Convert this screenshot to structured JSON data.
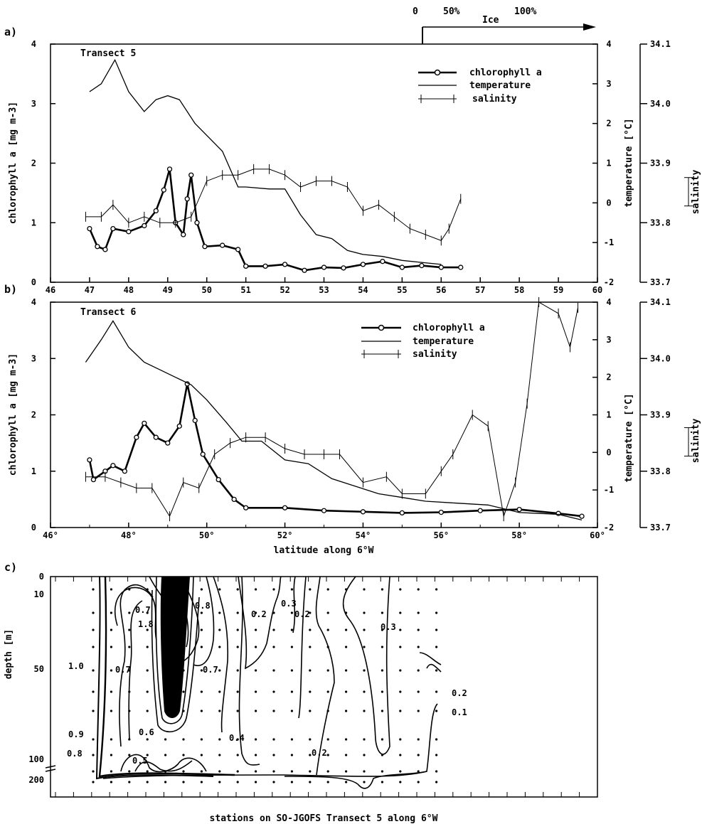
{
  "ice_bar": {
    "labels": [
      "0",
      "50%",
      "Ice",
      "100%"
    ]
  },
  "chart_data": [
    {
      "panel": "a)",
      "type": "line",
      "title": "Transect 5",
      "xlim": [
        46,
        60
      ],
      "x_ticks": [
        "46",
        "47",
        "48",
        "49",
        "50",
        "51",
        "52",
        "53",
        "54",
        "55",
        "56",
        "57",
        "58",
        "59",
        "60"
      ],
      "ylabel_left": "chlorophyll a [mg m-3]",
      "ylim_left": [
        0,
        4
      ],
      "ylabel_right": "temperature [°C]",
      "ylim_right": [
        -2,
        4
      ],
      "ylabel_salinity": "salinity",
      "ylim_salinity": [
        33.7,
        34.1
      ],
      "salinity_ticks": [
        "34.1",
        "34.0",
        "33.9",
        "33.8",
        "33.7"
      ],
      "legend": {
        "position": "top-right",
        "items": [
          "chlorophyll a",
          "temperature",
          "salinity"
        ]
      },
      "series": [
        {
          "name": "chlorophyll a",
          "axis": "left",
          "points": [
            [
              47.0,
              0.9
            ],
            [
              47.2,
              0.6
            ],
            [
              47.4,
              0.55
            ],
            [
              47.6,
              0.9
            ],
            [
              48.0,
              0.85
            ],
            [
              48.4,
              0.95
            ],
            [
              48.7,
              1.2
            ],
            [
              48.9,
              1.55
            ],
            [
              49.05,
              1.9
            ],
            [
              49.2,
              1.0
            ],
            [
              49.4,
              0.8
            ],
            [
              49.5,
              1.4
            ],
            [
              49.6,
              1.8
            ],
            [
              49.75,
              1.0
            ],
            [
              49.95,
              0.6
            ],
            [
              50.4,
              0.62
            ],
            [
              50.8,
              0.55
            ],
            [
              51.0,
              0.27
            ],
            [
              51.5,
              0.27
            ],
            [
              52.0,
              0.3
            ],
            [
              52.5,
              0.2
            ],
            [
              53.0,
              0.25
            ],
            [
              53.5,
              0.24
            ],
            [
              54.0,
              0.3
            ],
            [
              54.5,
              0.35
            ],
            [
              55.0,
              0.25
            ],
            [
              55.5,
              0.28
            ],
            [
              56.0,
              0.25
            ],
            [
              56.5,
              0.25
            ]
          ]
        },
        {
          "name": "temperature",
          "axis": "right",
          "points": [
            [
              47.0,
              2.8
            ],
            [
              47.3,
              3.0
            ],
            [
              47.65,
              3.6
            ],
            [
              48.0,
              2.8
            ],
            [
              48.4,
              2.3
            ],
            [
              48.7,
              2.6
            ],
            [
              49.0,
              2.7
            ],
            [
              49.3,
              2.6
            ],
            [
              49.7,
              2.0
            ],
            [
              50.0,
              1.7
            ],
            [
              50.4,
              1.3
            ],
            [
              50.8,
              0.4
            ],
            [
              51.0,
              0.4
            ],
            [
              51.6,
              0.35
            ],
            [
              52.0,
              0.35
            ],
            [
              52.4,
              -0.3
            ],
            [
              52.8,
              -0.8
            ],
            [
              53.2,
              -0.9
            ],
            [
              53.6,
              -1.2
            ],
            [
              54.0,
              -1.3
            ],
            [
              54.5,
              -1.35
            ],
            [
              55.0,
              -1.45
            ],
            [
              55.5,
              -1.5
            ],
            [
              56.0,
              -1.55
            ]
          ]
        },
        {
          "name": "salinity",
          "axis": "salinity",
          "points": [
            [
              46.9,
              33.81
            ],
            [
              47.3,
              33.81
            ],
            [
              47.6,
              33.83
            ],
            [
              48.0,
              33.8
            ],
            [
              48.4,
              33.81
            ],
            [
              48.8,
              33.8
            ],
            [
              49.2,
              33.8
            ],
            [
              49.6,
              33.81
            ],
            [
              50.0,
              33.87
            ],
            [
              50.4,
              33.88
            ],
            [
              50.8,
              33.88
            ],
            [
              51.2,
              33.89
            ],
            [
              51.6,
              33.89
            ],
            [
              52.0,
              33.88
            ],
            [
              52.4,
              33.86
            ],
            [
              52.8,
              33.87
            ],
            [
              53.2,
              33.87
            ],
            [
              53.6,
              33.86
            ],
            [
              54.0,
              33.82
            ],
            [
              54.4,
              33.83
            ],
            [
              54.8,
              33.81
            ],
            [
              55.2,
              33.79
            ],
            [
              55.6,
              33.78
            ],
            [
              56.0,
              33.77
            ],
            [
              56.2,
              33.79
            ],
            [
              56.5,
              33.84
            ]
          ]
        }
      ]
    },
    {
      "panel": "b)",
      "type": "line",
      "title": "Transect 6",
      "xlim": [
        46,
        60
      ],
      "x_ticks": [
        "46°",
        "48°",
        "50°",
        "52°",
        "54°",
        "56°",
        "58°",
        "60°"
      ],
      "xlabel": "latitude along 6°W",
      "ylabel_left": "chlorophyll a [mg m-3]",
      "ylim_left": [
        0,
        4
      ],
      "ylabel_right": "temperature [°C]",
      "ylim_right": [
        -2,
        4
      ],
      "ylabel_salinity": "salinity",
      "ylim_salinity": [
        33.7,
        34.1
      ],
      "salinity_ticks": [
        "34.1",
        "34.0",
        "33.9",
        "33.8",
        "33.7"
      ],
      "legend": {
        "position": "top-right",
        "items": [
          "chlorophyll a",
          "temperature",
          "salinity"
        ]
      },
      "series": [
        {
          "name": "chlorophyll a",
          "axis": "left",
          "points": [
            [
              47.0,
              1.2
            ],
            [
              47.1,
              0.85
            ],
            [
              47.4,
              1.0
            ],
            [
              47.6,
              1.1
            ],
            [
              47.9,
              1.0
            ],
            [
              48.2,
              1.6
            ],
            [
              48.4,
              1.85
            ],
            [
              48.7,
              1.6
            ],
            [
              49.0,
              1.5
            ],
            [
              49.3,
              1.8
            ],
            [
              49.5,
              2.55
            ],
            [
              49.7,
              1.9
            ],
            [
              49.9,
              1.3
            ],
            [
              50.3,
              0.85
            ],
            [
              50.7,
              0.5
            ],
            [
              51.0,
              0.35
            ],
            [
              52.0,
              0.35
            ],
            [
              53.0,
              0.3
            ],
            [
              54.0,
              0.28
            ],
            [
              55.0,
              0.26
            ],
            [
              56.0,
              0.27
            ],
            [
              57.0,
              0.3
            ],
            [
              58.0,
              0.32
            ],
            [
              59.0,
              0.25
            ],
            [
              59.6,
              0.2
            ]
          ]
        },
        {
          "name": "temperature",
          "axis": "right",
          "points": [
            [
              46.9,
              2.4
            ],
            [
              47.3,
              3.0
            ],
            [
              47.6,
              3.5
            ],
            [
              48.0,
              2.8
            ],
            [
              48.4,
              2.4
            ],
            [
              48.8,
              2.2
            ],
            [
              49.2,
              2.0
            ],
            [
              49.6,
              1.8
            ],
            [
              50.0,
              1.4
            ],
            [
              50.5,
              0.8
            ],
            [
              50.9,
              0.3
            ],
            [
              51.4,
              0.3
            ],
            [
              52.0,
              -0.2
            ],
            [
              52.6,
              -0.3
            ],
            [
              53.2,
              -0.7
            ],
            [
              53.8,
              -0.9
            ],
            [
              54.4,
              -1.1
            ],
            [
              55.0,
              -1.2
            ],
            [
              55.6,
              -1.3
            ],
            [
              56.4,
              -1.35
            ],
            [
              57.2,
              -1.4
            ],
            [
              58.0,
              -1.6
            ],
            [
              59.0,
              -1.65
            ],
            [
              59.6,
              -1.8
            ]
          ]
        },
        {
          "name": "salinity",
          "axis": "salinity",
          "points": [
            [
              46.9,
              33.79
            ],
            [
              47.4,
              33.79
            ],
            [
              47.8,
              33.78
            ],
            [
              48.2,
              33.77
            ],
            [
              48.6,
              33.77
            ],
            [
              49.05,
              33.72
            ],
            [
              49.4,
              33.78
            ],
            [
              49.8,
              33.77
            ],
            [
              50.2,
              33.83
            ],
            [
              50.6,
              33.85
            ],
            [
              51.0,
              33.86
            ],
            [
              51.5,
              33.86
            ],
            [
              52.0,
              33.84
            ],
            [
              52.5,
              33.83
            ],
            [
              53.0,
              33.83
            ],
            [
              53.4,
              33.83
            ],
            [
              54.0,
              33.78
            ],
            [
              54.6,
              33.79
            ],
            [
              55.0,
              33.76
            ],
            [
              55.6,
              33.76
            ],
            [
              56.0,
              33.8
            ],
            [
              56.3,
              33.83
            ],
            [
              56.8,
              33.9
            ],
            [
              57.2,
              33.88
            ],
            [
              57.6,
              33.72
            ],
            [
              57.9,
              33.78
            ],
            [
              58.2,
              33.92
            ],
            [
              58.5,
              34.1
            ],
            [
              59.0,
              34.08
            ],
            [
              59.3,
              34.02
            ],
            [
              59.5,
              34.09
            ]
          ]
        }
      ]
    },
    {
      "panel": "c)",
      "type": "contour",
      "xlabel": "stations on SO-JGOFS Transect 5   along 6°W",
      "ylabel": "depth [m]",
      "y_ticks": [
        "0",
        "10",
        "50",
        "100",
        "200"
      ],
      "contour_labels": [
        "0.7",
        "1.8",
        "0.8",
        "1.0",
        "0.7",
        "0.7",
        "0.3",
        "0.2",
        "0.2",
        "0.3",
        "0.2",
        "0.1",
        "0.9",
        "0.6",
        "0.4",
        "0.8",
        "0.5",
        "0.2"
      ]
    }
  ]
}
